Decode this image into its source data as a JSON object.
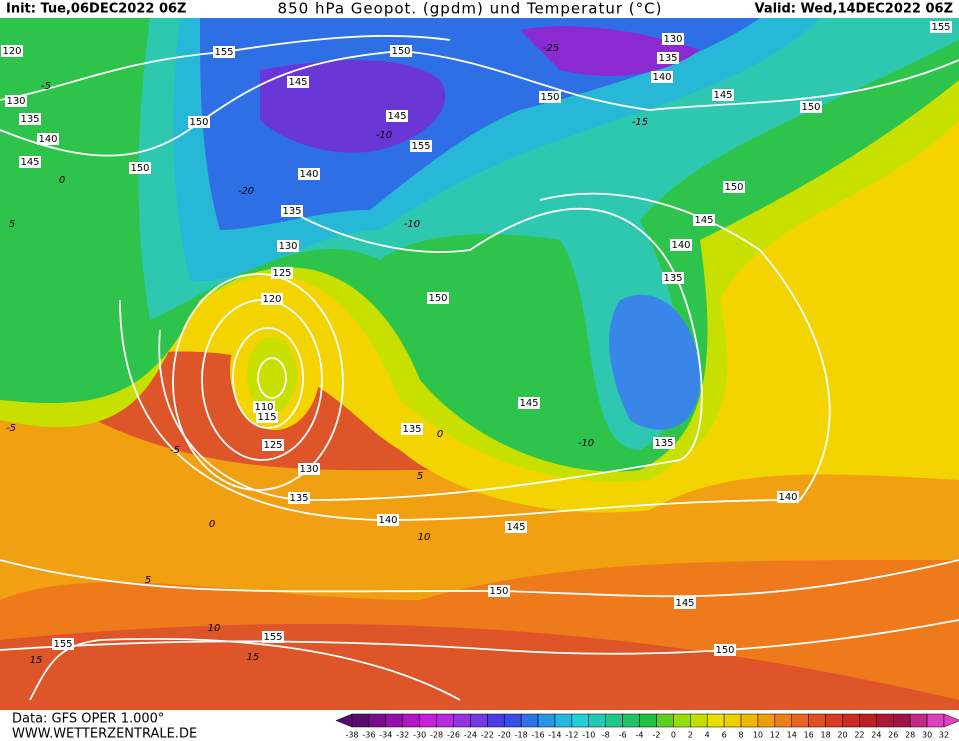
{
  "header": {
    "init": "Init: Tue,06DEC2022 06Z",
    "title": "850 hPa Geopot. (gpdm) und Temperatur (°C)",
    "valid": "Valid: Wed,14DEC2022 06Z"
  },
  "footer": {
    "data_source": "Data: GFS OPER 1.000°",
    "website": "WWW.WETTERZENTRALE.DE"
  },
  "colorbar": {
    "ticks": [
      -38,
      -36,
      -34,
      -32,
      -30,
      -28,
      -26,
      -24,
      -22,
      -20,
      -18,
      -16,
      -14,
      -12,
      -10,
      -8,
      -6,
      -4,
      -2,
      0,
      2,
      4,
      6,
      8,
      10,
      12,
      14,
      16,
      18,
      20,
      22,
      24,
      26,
      28,
      30,
      32
    ]
  },
  "geopotential_labels": [
    155,
    150,
    130,
    135,
    140,
    155,
    145,
    150,
    145,
    150,
    150,
    145,
    155,
    150,
    140,
    135,
    150,
    145,
    130,
    140,
    125,
    135,
    120,
    150,
    145,
    110,
    115,
    135,
    125,
    135,
    130,
    135,
    140,
    140,
    145,
    150,
    145,
    155,
    155,
    150,
    130,
    135,
    140,
    145,
    120
  ],
  "temperature_labels": [
    -5,
    0,
    -20,
    -25,
    -10,
    -15,
    -10,
    -10,
    0,
    5,
    -5,
    0,
    5,
    10,
    10,
    15,
    15,
    -5,
    5
  ]
}
